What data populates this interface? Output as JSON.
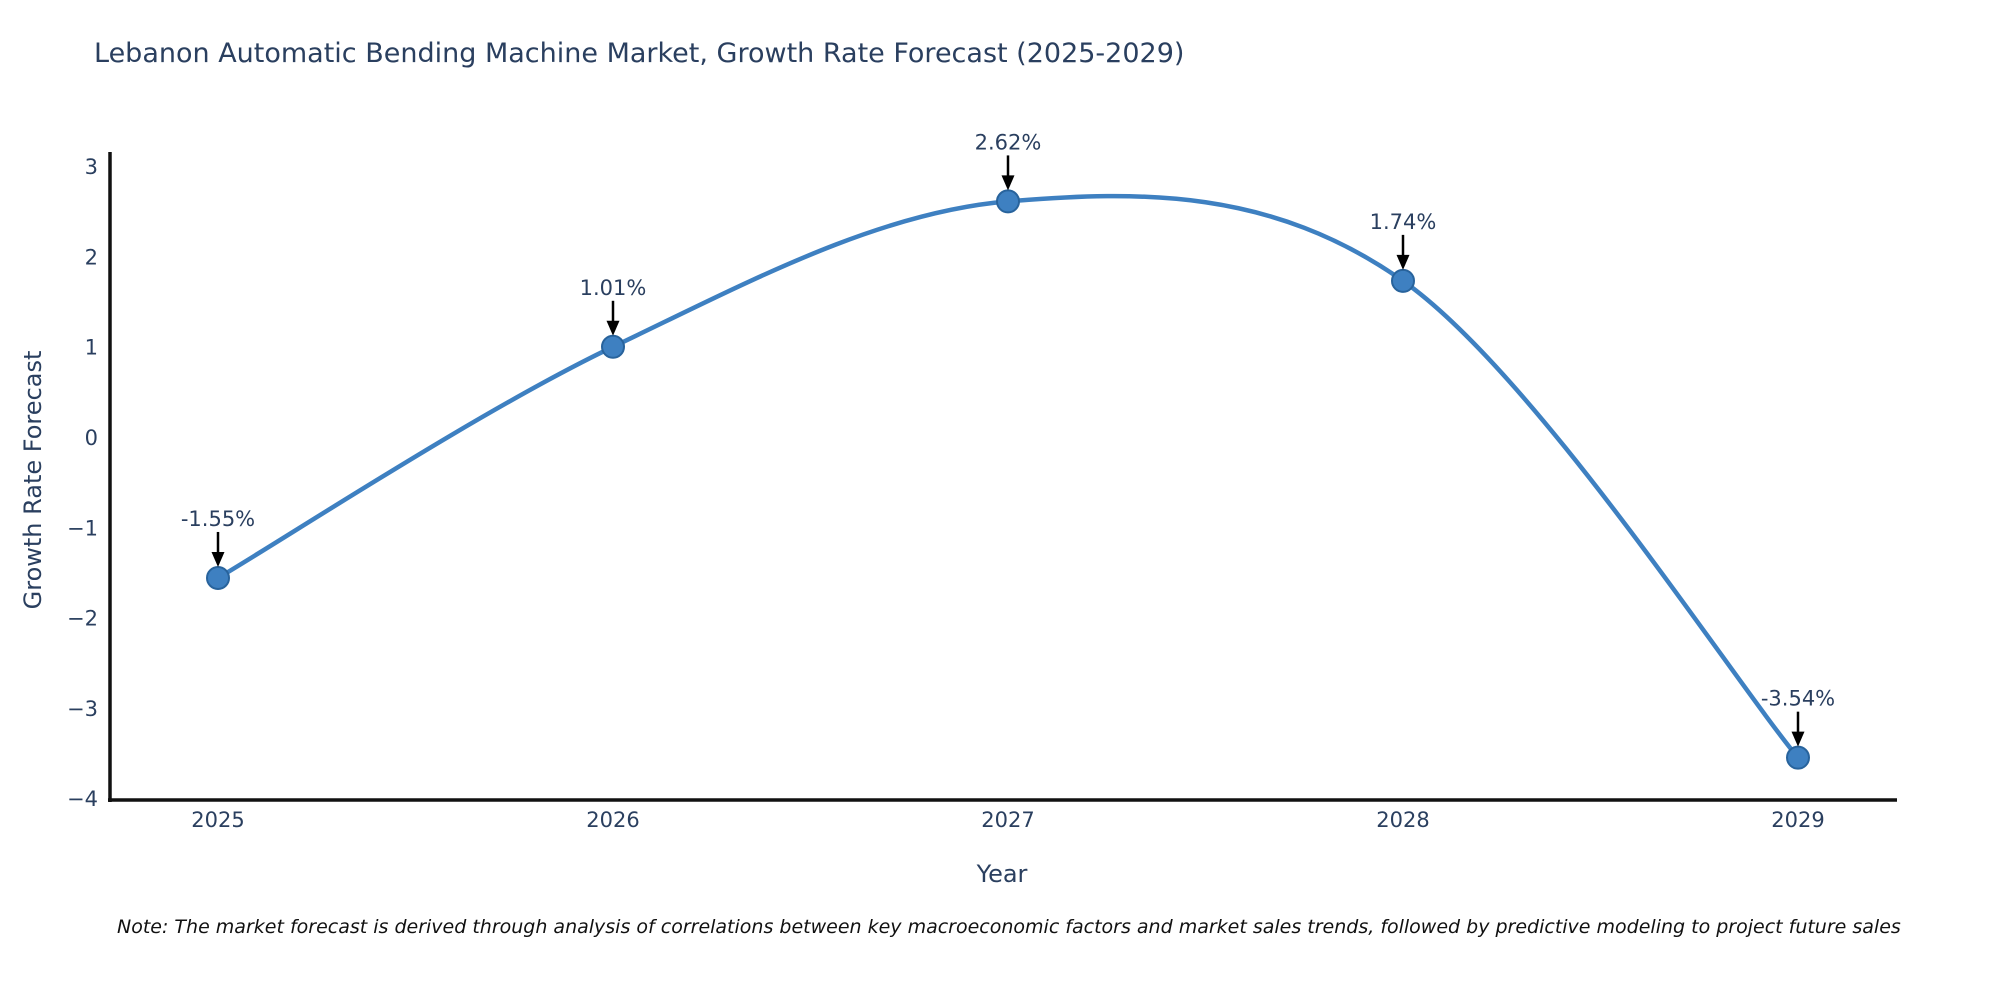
{
  "title": "Lebanon Automatic Bending Machine Market, Growth Rate Forecast (2025-2029)",
  "footnote": "Note: The market forecast is derived through analysis of correlations between key macroeconomic factors and market sales trends, followed by predictive modeling to project future sales",
  "chart_data": {
    "type": "line",
    "title": "Lebanon Automatic Bending Machine Market, Growth Rate Forecast (2025-2029)",
    "xlabel": "Year",
    "ylabel": "Growth Rate Forecast",
    "x": [
      2025,
      2026,
      2027,
      2028,
      2029
    ],
    "y": [
      -1.55,
      1.01,
      2.62,
      1.74,
      -3.54
    ],
    "point_labels": [
      "-1.55%",
      "1.01%",
      "2.62%",
      "1.74%",
      "-3.54%"
    ],
    "x_tick_labels": [
      "2025",
      "2026",
      "2027",
      "2028",
      "2029"
    ],
    "y_tick_values": [
      3,
      2,
      1,
      0,
      -1,
      -2,
      -3,
      -4
    ],
    "y_tick_labels": [
      "3",
      "2",
      "1",
      "0",
      "−1",
      "−2",
      "−3",
      "−4"
    ],
    "ylim": [
      -4,
      3.2
    ],
    "line_shape": "spline",
    "grid": false,
    "legend_visible": false,
    "line_color": "#3e80c1",
    "marker_color": "#3e80c1",
    "marker_edge_color": "#28639c",
    "axis_line_color": "#111111",
    "tick_label_color": "#2a3f5f",
    "annotation_text_color": "#2a3f5f",
    "annotation_arrow_color": "#000000"
  }
}
